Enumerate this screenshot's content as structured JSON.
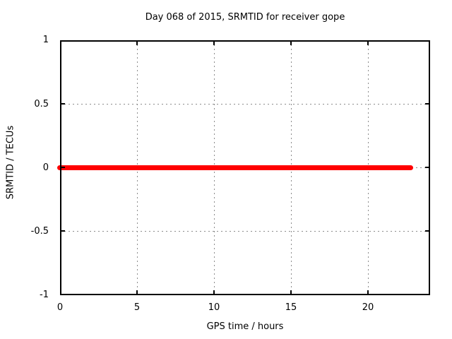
{
  "chart_data": {
    "type": "line",
    "title": "Day 068 of 2015, SRMTID for receiver gope",
    "xlabel": "GPS time / hours",
    "ylabel": "SRMTID / TECUs",
    "xlim": [
      0,
      24
    ],
    "ylim": [
      -1,
      1
    ],
    "x_ticks": [
      "0",
      "5",
      "10",
      "15",
      "20"
    ],
    "y_ticks": [
      "1",
      "0.5",
      "0",
      "-0.5",
      "-1"
    ],
    "grid": true,
    "legend": "none",
    "series": [
      {
        "name": "SRMTID",
        "color": "#ff0000",
        "x": [
          0,
          22.9
        ],
        "y": [
          0,
          0
        ]
      }
    ]
  },
  "colors": {
    "background": "#ffffff",
    "axis_border": "#000000",
    "grid": "#8c8c8c",
    "series_line": "#ff0000",
    "text": "#000000"
  }
}
